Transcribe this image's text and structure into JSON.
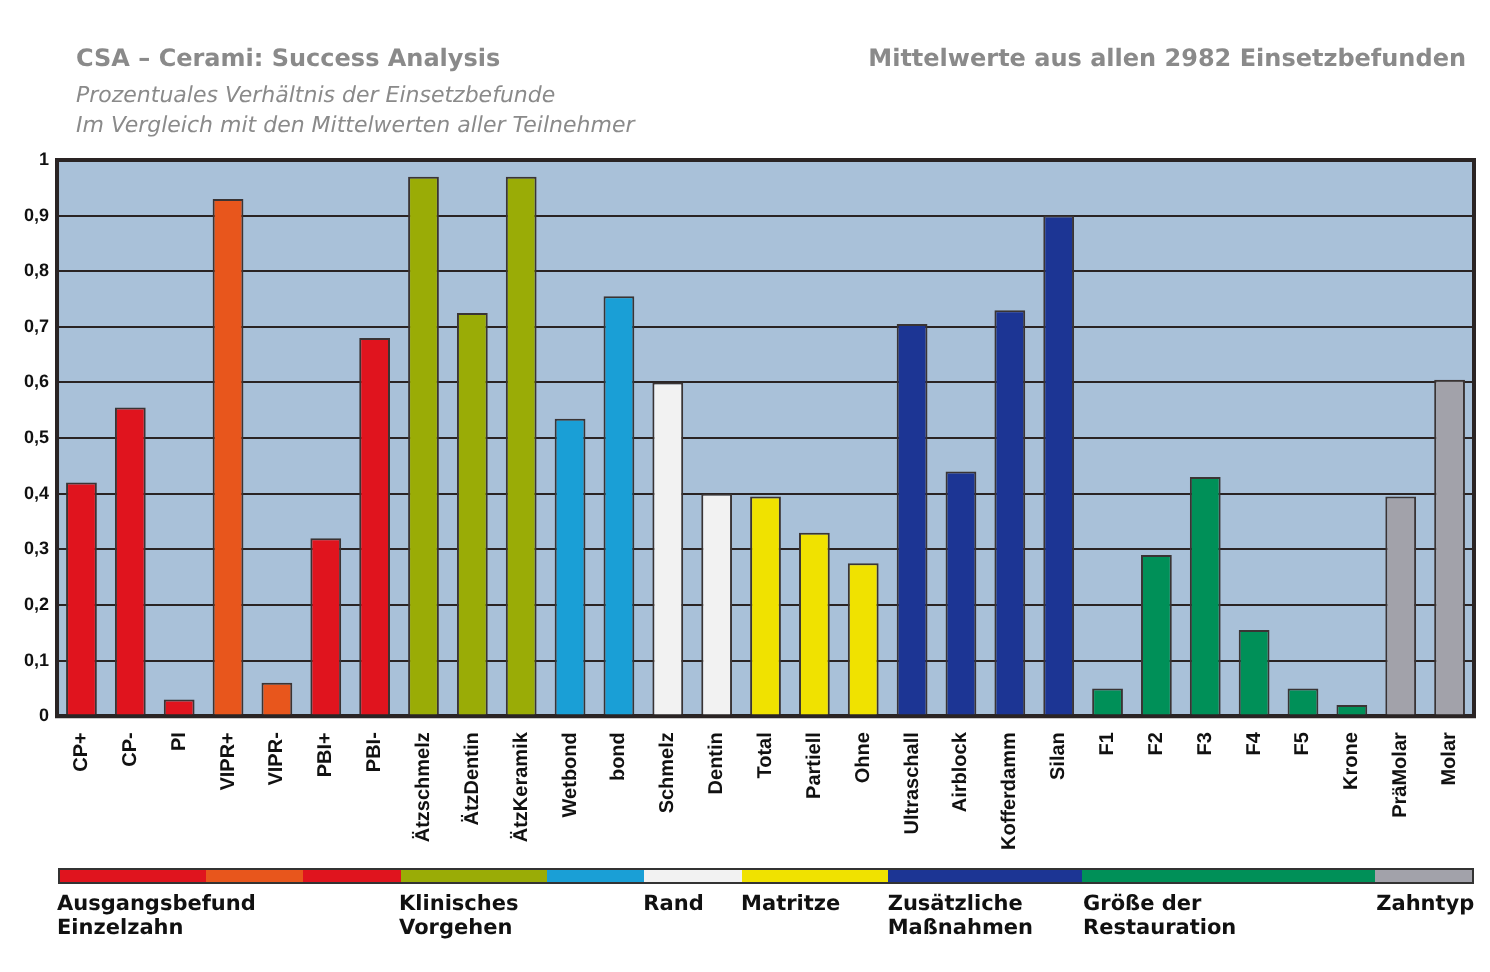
{
  "chart_data": {
    "type": "bar",
    "title": "CSA – Cerami: Success Analysis",
    "subtitle": "Prozentuales Verhältnis der Einsetzbefunde\nIm Vergleich mit den Mittelwerten aller Teilnehmer",
    "categories": [
      "CP+",
      "CP-",
      "PI",
      "VIPR+",
      "VIPR-",
      "PBI+",
      "PBI-",
      "Ätzschmelz",
      "ÄtzDentin",
      "ÄtzKeramik",
      "Wetbond",
      "bond",
      "Schmelz",
      "Dentin",
      "Total",
      "Partiell",
      "Ohne",
      "Ultraschall",
      "Airblock",
      "Kofferdamm",
      "Silan",
      "F1",
      "F2",
      "F3",
      "F4",
      "F5",
      "Krone",
      "PräMolar",
      "Molar"
    ],
    "values": [
      0.42,
      0.555,
      0.03,
      0.93,
      0.06,
      0.32,
      0.68,
      0.97,
      0.725,
      0.97,
      0.535,
      0.755,
      0.6,
      0.4,
      0.395,
      0.33,
      0.275,
      0.705,
      0.44,
      0.73,
      0.9,
      0.05,
      0.29,
      0.43,
      0.155,
      0.05,
      0.02,
      0.395,
      0.605
    ],
    "colors": [
      "#e0141e",
      "#e0141e",
      "#e0141e",
      "#e8561c",
      "#e8561c",
      "#e0141e",
      "#e0141e",
      "#9aac06",
      "#9aac06",
      "#9aac06",
      "#1a9fd6",
      "#1a9fd6",
      "#f2f2f2",
      "#f2f2f2",
      "#f0e200",
      "#f0e200",
      "#f0e200",
      "#1c3594",
      "#1c3594",
      "#1c3594",
      "#1c3594",
      "#009058",
      "#009058",
      "#009058",
      "#009058",
      "#009058",
      "#009058",
      "#a2a2aa",
      "#a2a2aa"
    ],
    "ylim": [
      0,
      1
    ],
    "yticks": [
      0,
      {
        "value": 0.1,
        "label": "0,1"
      },
      {
        "value": 0.2,
        "label": "0,2"
      },
      {
        "value": 0.3,
        "label": "0,3"
      },
      {
        "value": 0.4,
        "label": "0,4"
      },
      {
        "value": 0.5,
        "label": "0,5"
      },
      {
        "value": 0.6,
        "label": "0,6"
      },
      {
        "value": 0.7,
        "label": "0,7"
      },
      {
        "value": 0.8,
        "label": "0,8"
      },
      {
        "value": 0.9,
        "label": "0,9"
      },
      1
    ],
    "grid": "y",
    "annotations": [
      "Mittelwerte aus allen 2982 Einsetzbefunden",
      "Ausgangsbefund\nEinzelzahn",
      "Klinisches\nVorgehen",
      "Rand",
      "Matritze",
      "Zusätzliche\nMaßnahmen",
      "Größe der\nRestauration",
      "Zahntyp"
    ]
  }
}
